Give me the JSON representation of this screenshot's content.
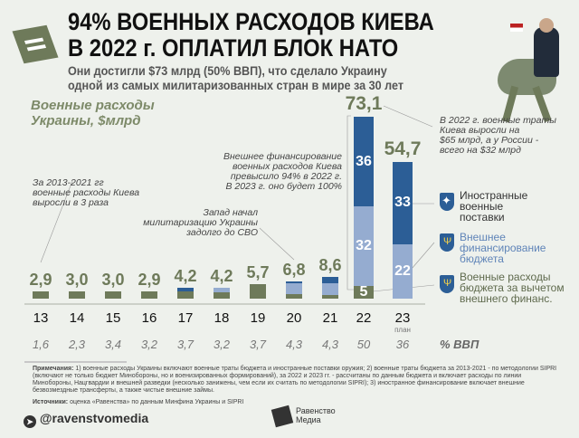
{
  "header": {
    "title_line1": "94% ВОЕННЫХ РАСХОДОВ КИЕВА",
    "title_line2": "В 2022 г. ОПЛАТИЛ БЛОК НАТО",
    "subtitle_line1": "Они достигли $73 млрд (50% ВВП), что сделало Украину",
    "subtitle_line2": "одной из самых милитаризованных стран в мире за 30 лет"
  },
  "annotations": {
    "growth": [
      "За 2013-2021 гг",
      "военные расходы Киева",
      "выросли в 3 раза"
    ],
    "west": [
      "Запад начал",
      "милитаризацию Украины",
      "задолго до СВО"
    ],
    "external": [
      "Внешнее финансирование",
      "военных расходов Киева",
      "превысило 94% в 2022 г.",
      "В 2023 г. оно будет 100%"
    ],
    "russia": [
      "В 2022 г. военные траты",
      "Киева выросли на",
      "$65 млрд, а у России -",
      "всего на $32 млрд"
    ]
  },
  "legend": {
    "foreign": "Иностранные военные поставки",
    "external": "Внешнее финансирование бюджета",
    "budget": "Военные расходы бюджета за вычетом внешнего финанс."
  },
  "chart_data": {
    "type": "bar",
    "title": "Военные расходы Украины, $млрд",
    "ylabel": "$млрд",
    "categories": [
      "13",
      "14",
      "15",
      "16",
      "17",
      "18",
      "19",
      "20",
      "21",
      "22",
      "23"
    ],
    "category_note": {
      "23": "план"
    },
    "totals": [
      "2,9",
      "3,0",
      "3,0",
      "2,9",
      "4,2",
      "4,2",
      "5,7",
      "6,8",
      "8,6",
      "73,1",
      "54,7"
    ],
    "series": [
      {
        "name": "Военные расходы бюджета за вычетом внешнего финанс.",
        "color": "#6e7a5a",
        "values": [
          2.9,
          3.0,
          3.0,
          2.9,
          3.0,
          2.6,
          5.7,
          1.9,
          1.6,
          5,
          0
        ]
      },
      {
        "name": "Внешнее финансирование бюджета",
        "color": "#95acd0",
        "values": [
          0,
          0,
          0,
          0,
          0,
          1.6,
          0,
          4.3,
          4.5,
          32,
          22
        ]
      },
      {
        "name": "Иностранные военные поставки",
        "color": "#2c5e96",
        "values": [
          0,
          0,
          0,
          0,
          1.2,
          0,
          0,
          0.6,
          2.5,
          36,
          33
        ]
      }
    ],
    "segment_labels": {
      "22": [
        "5",
        "32",
        "36"
      ],
      "23": [
        "",
        "22",
        "33"
      ]
    },
    "gdp_label": "% ВВП",
    "gdp_share": [
      "1,6",
      "2,3",
      "3,4",
      "3,2",
      "3,7",
      "3,2",
      "3,7",
      "4,3",
      "4,3",
      "50",
      "36"
    ]
  },
  "footer": {
    "notes_label": "Примечания:",
    "notes": "1) военные расходы Украины включают военные траты бюджета и иностранные поставки оружия; 2) военные траты бюджета за 2013-2021 - по методологии SIPRI (включают не только бюджет Минобороны, но и военизированных формирований), за 2022 и 2023 гг. - рассчитаны по данным бюджета и включает расходы по линии Минобороны, Нацгвардии и внешней разведки (несколько занижены, чем если их считать по методологии SIPRI); 3) иностранное финансирование включает внешние безвозмездные трансферты, а также чистые внешние займы.",
    "sources_label": "Источники:",
    "sources": "оценка «Равенства» по данным Минфина Украины и SIPRI",
    "telegram": "@ravenstvomedia",
    "brand_line1": "Равенство",
    "brand_line2": "Медиа"
  }
}
